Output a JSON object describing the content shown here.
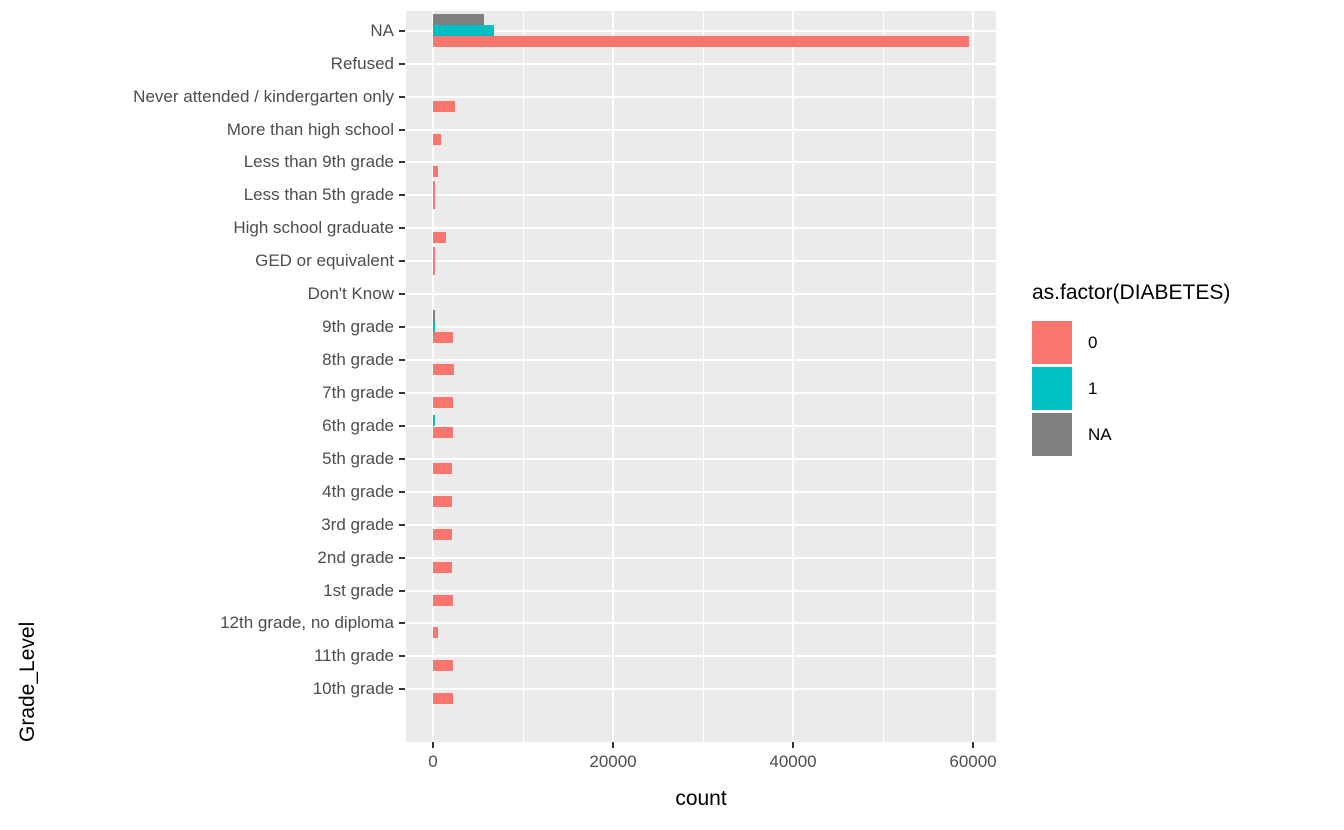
{
  "chart_data": {
    "type": "bar",
    "orientation": "horizontal",
    "xlabel": "count",
    "ylabel": "Grade_Level",
    "xlim": [
      0,
      60000
    ],
    "x_ticks": [
      0,
      20000,
      40000,
      60000
    ],
    "x_minor_ticks": [
      10000,
      30000,
      50000
    ],
    "panel_bg": "#EBEBEB",
    "grid_color": "#FFFFFF",
    "tick_label_color": "#4D4D4D",
    "categories": [
      "NA",
      "Refused",
      "Never attended / kindergarten only",
      "More than high school",
      "Less than 9th grade",
      "Less than 5th grade",
      "High school graduate",
      "GED or equivalent",
      "Don't Know",
      "9th grade",
      "8th grade",
      "7th grade",
      "6th grade",
      "5th grade",
      "4th grade",
      "3rd grade",
      "2nd grade",
      "1st grade",
      "12th grade, no diploma",
      "11th grade",
      "10th grade"
    ],
    "series": [
      {
        "name": "0",
        "color": "#F8766D",
        "values": [
          59500,
          0,
          2400,
          900,
          500,
          150,
          1400,
          150,
          0,
          2200,
          2350,
          2250,
          2200,
          2100,
          2100,
          2150,
          2100,
          2250,
          500,
          2250,
          2250
        ]
      },
      {
        "name": "1",
        "color": "#00BFC4",
        "values": [
          6800,
          0,
          0,
          0,
          0,
          0,
          0,
          0,
          0,
          150,
          0,
          0,
          150,
          0,
          0,
          0,
          0,
          0,
          0,
          0,
          0
        ]
      },
      {
        "name": "NA",
        "color": "#7F7F7F",
        "values": [
          5700,
          0,
          0,
          0,
          0,
          0,
          0,
          0,
          0,
          100,
          0,
          0,
          0,
          0,
          0,
          0,
          0,
          0,
          0,
          0,
          0
        ]
      }
    ],
    "legend": {
      "title": "as.factor(DIABETES)",
      "entries": [
        {
          "label": "0",
          "color": "#F8766D"
        },
        {
          "label": "1",
          "color": "#00BFC4"
        },
        {
          "label": "NA",
          "color": "#7F7F7F"
        }
      ]
    }
  }
}
